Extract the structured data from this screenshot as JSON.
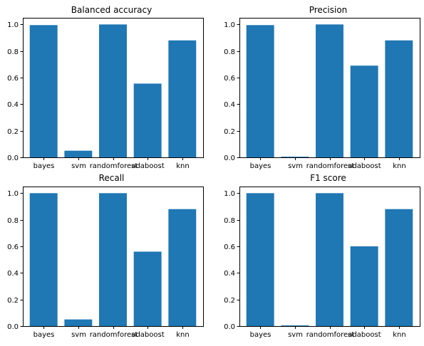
{
  "chart_data": [
    {
      "type": "bar",
      "title": "Balanced accuracy",
      "categories": [
        "bayes",
        "svm",
        "randomforest",
        "adaboost",
        "knn"
      ],
      "values": [
        0.995,
        0.05,
        1.0,
        0.555,
        0.88
      ],
      "ylim": [
        0,
        1.05
      ],
      "yticks": [
        "0.0",
        "0.2",
        "0.4",
        "0.6",
        "0.8",
        "1.0"
      ],
      "bar_color": "#1f77b4",
      "grid": false
    },
    {
      "type": "bar",
      "title": "Precision",
      "categories": [
        "bayes",
        "svm",
        "randomforest",
        "adaboost",
        "knn"
      ],
      "values": [
        0.995,
        0.005,
        1.0,
        0.69,
        0.88
      ],
      "ylim": [
        0,
        1.05
      ],
      "yticks": [
        "0.0",
        "0.2",
        "0.4",
        "0.6",
        "0.8",
        "1.0"
      ],
      "bar_color": "#1f77b4",
      "grid": false
    },
    {
      "type": "bar",
      "title": "Recall",
      "categories": [
        "bayes",
        "svm",
        "randomforest",
        "adaboost",
        "knn"
      ],
      "values": [
        1.0,
        0.05,
        1.0,
        0.56,
        0.88
      ],
      "ylim": [
        0,
        1.05
      ],
      "yticks": [
        "0.0",
        "0.2",
        "0.4",
        "0.6",
        "0.8",
        "1.0"
      ],
      "bar_color": "#1f77b4",
      "grid": false
    },
    {
      "type": "bar",
      "title": "F1 score",
      "categories": [
        "bayes",
        "svm",
        "randomforest",
        "adaboost",
        "knn"
      ],
      "values": [
        1.0,
        0.005,
        1.0,
        0.6,
        0.88
      ],
      "ylim": [
        0,
        1.05
      ],
      "yticks": [
        "0.0",
        "0.2",
        "0.4",
        "0.6",
        "0.8",
        "1.0"
      ],
      "bar_color": "#1f77b4",
      "grid": false
    }
  ]
}
